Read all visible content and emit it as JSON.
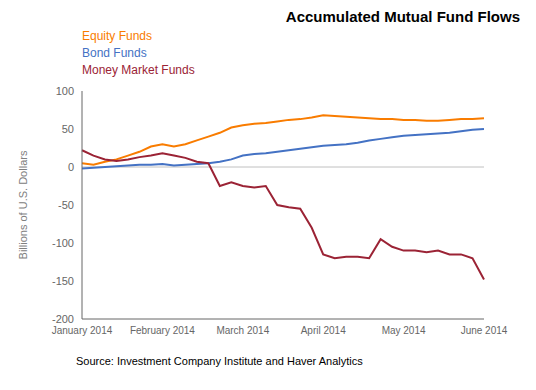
{
  "chart_data": {
    "type": "line",
    "title": "Accumulated Mutual Fund Flows",
    "y_label": "Billions of U.S. Dollars",
    "annotations": [
      "Source: Investment Company Institute and Haver Analytics"
    ],
    "categories": [
      "January 2014",
      null,
      null,
      null,
      null,
      null,
      null,
      "February 2014",
      null,
      null,
      null,
      null,
      null,
      null,
      "March 2014",
      null,
      null,
      null,
      null,
      null,
      null,
      "April 2014",
      null,
      null,
      null,
      null,
      null,
      null,
      "May 2014",
      null,
      null,
      null,
      null,
      null,
      null,
      "June 2014"
    ],
    "series": [
      {
        "name": "Equity Funds",
        "color": "#F97C00",
        "values": [
          5,
          3,
          7,
          10,
          15,
          20,
          27,
          30,
          27,
          30,
          35,
          40,
          45,
          52,
          55,
          57,
          58,
          60,
          62,
          63,
          65,
          68,
          67,
          66,
          65,
          64,
          63,
          63,
          62,
          62,
          61,
          61,
          62,
          63,
          63,
          64
        ]
      },
      {
        "name": "Bond Funds",
        "color": "#4472C4",
        "values": [
          -2,
          -1,
          0,
          1,
          2,
          3,
          3,
          4,
          2,
          3,
          4,
          5,
          7,
          10,
          15,
          17,
          18,
          20,
          22,
          24,
          26,
          28,
          29,
          30,
          32,
          35,
          37,
          39,
          41,
          42,
          43,
          44,
          45,
          47,
          49,
          50
        ]
      },
      {
        "name": "Money Market Funds",
        "color": "#9B2335",
        "values": [
          22,
          15,
          10,
          8,
          10,
          13,
          15,
          18,
          15,
          12,
          7,
          5,
          -25,
          -20,
          -25,
          -27,
          -25,
          -50,
          -53,
          -55,
          -80,
          -115,
          -120,
          -118,
          -118,
          -120,
          -95,
          -105,
          -110,
          -110,
          -112,
          -110,
          -115,
          -115,
          -120,
          -148
        ]
      }
    ],
    "ylim": [
      -200,
      100
    ],
    "yticks": [
      -200,
      -150,
      -100,
      -50,
      0,
      50,
      100
    ],
    "grid": false,
    "legend": "upper left"
  }
}
